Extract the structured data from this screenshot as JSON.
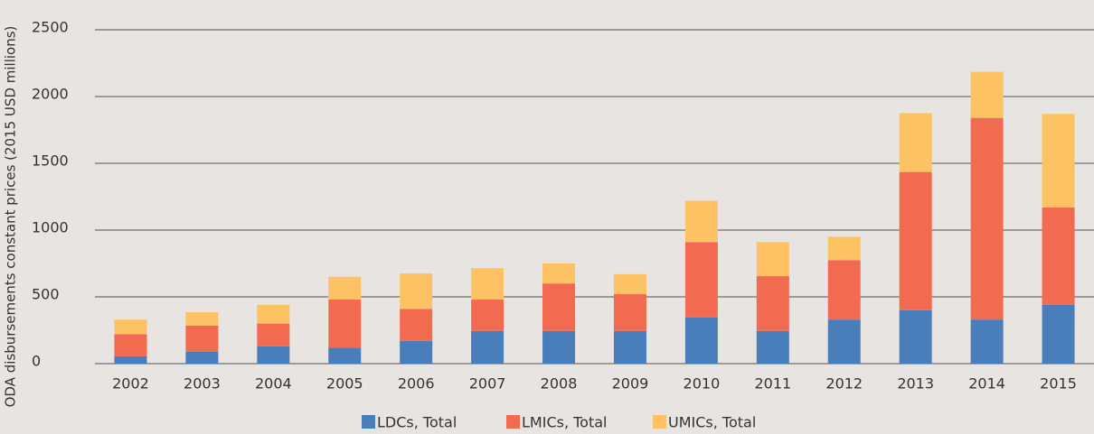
{
  "chart_data": {
    "type": "stacked_bar",
    "y_label": "ODA disbursements constant prices (2015 USD millions)",
    "categories": [
      "2002",
      "2003",
      "2004",
      "2005",
      "2006",
      "2007",
      "2008",
      "2009",
      "2010",
      "2011",
      "2012",
      "2013",
      "2014",
      "2015"
    ],
    "series": [
      {
        "name": "LDCs, Total",
        "color": "#4a7ebb",
        "values": [
          55,
          90,
          130,
          120,
          170,
          245,
          245,
          245,
          345,
          245,
          330,
          400,
          330,
          440
        ]
      },
      {
        "name": "LMICs, Total",
        "color": "#f26b50",
        "values": [
          165,
          195,
          170,
          360,
          240,
          235,
          355,
          275,
          565,
          410,
          445,
          1035,
          1510,
          730
        ]
      },
      {
        "name": "UMICs, Total",
        "color": "#fdc263",
        "values": [
          110,
          100,
          140,
          170,
          265,
          235,
          150,
          150,
          310,
          255,
          175,
          440,
          345,
          700
        ]
      }
    ],
    "ylim": [
      0,
      2500
    ],
    "yticks": [
      0,
      500,
      1000,
      1500,
      2000,
      2500
    ],
    "grid": true,
    "legend": "bottom"
  }
}
